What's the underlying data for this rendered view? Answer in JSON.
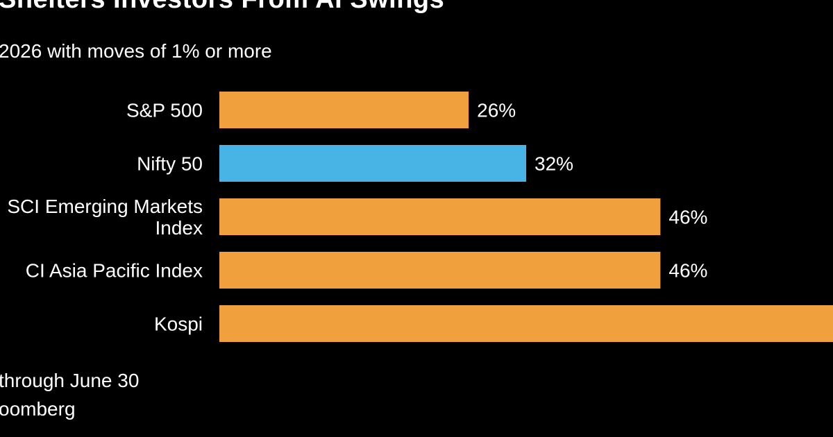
{
  "header": {
    "title": "Shelters Investors From AI Swings",
    "subtitle": "2026 with moves of 1% or more"
  },
  "footer": {
    "note": "through June 30",
    "source": "oomberg"
  },
  "colors": {
    "background": "#000000",
    "bar_default": "#f0a03c",
    "bar_highlight": "#48b4e6",
    "text": "#ffffff"
  },
  "chart_data": {
    "type": "bar",
    "orientation": "horizontal",
    "categories": [
      [
        "S&P 500"
      ],
      [
        "Nifty 50"
      ],
      [
        "SCI Emerging Markets",
        "Index"
      ],
      [
        "CI Asia Pacific Index"
      ],
      [
        "Kospi"
      ]
    ],
    "values": [
      26,
      32,
      46,
      46,
      null
    ],
    "value_labels": [
      "26%",
      "32%",
      "46%",
      "46%",
      ""
    ],
    "highlight_index": 1,
    "xlim": [
      0,
      64
    ],
    "grid": false
  }
}
